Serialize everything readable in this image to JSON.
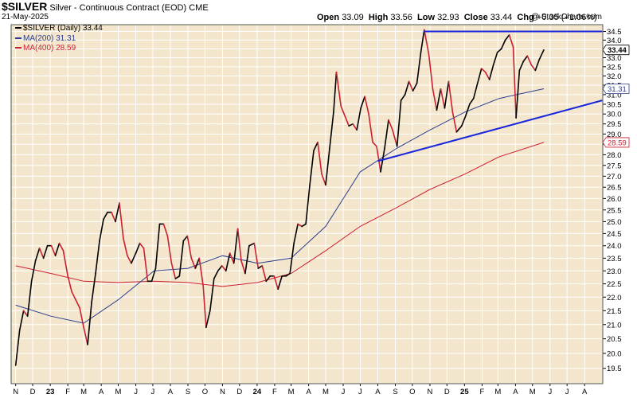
{
  "header": {
    "symbol": "$SILVER",
    "description": "Silver - Continuous Contract (EOD)",
    "exchange": "CME",
    "date": "21-May-2025",
    "open_label": "Open",
    "open": "33.09",
    "high_label": "High",
    "high": "33.56",
    "low_label": "Low",
    "low": "32.93",
    "close_label": "Close",
    "close": "33.44",
    "chg_label": "Chg",
    "chg": "+0.35 (+1.06%)",
    "watermark": "@ StockCharts.com"
  },
  "legend": {
    "price": "$SILVER (Daily) 33.44",
    "ma200": "MA(200) 31.31",
    "ma400": "MA(400) 28.59"
  },
  "colors": {
    "plot_bg": "#f4e6cc",
    "up": "#000000",
    "down": "#cc1f2f",
    "ma200": "#2a3d8f",
    "ma400": "#cc1f2f",
    "trendline": "#1a26d9",
    "grid": "#ffffff"
  },
  "chart_data": {
    "type": "line",
    "title": "$SILVER Silver - Continuous Contract (EOD) CME",
    "x_ticks": [
      "N",
      "D",
      "23",
      "F",
      "M",
      "A",
      "M",
      "J",
      "J",
      "A",
      "S",
      "O",
      "N",
      "D",
      "24",
      "F",
      "M",
      "A",
      "M",
      "J",
      "J",
      "A",
      "S",
      "O",
      "N",
      "D",
      "25",
      "F",
      "M",
      "A",
      "M",
      "J",
      "J",
      "A"
    ],
    "y_ticks": [
      19.5,
      20.0,
      20.5,
      21.0,
      21.5,
      22.0,
      22.5,
      23.0,
      23.5,
      24.0,
      24.5,
      25.0,
      25.5,
      26.0,
      26.5,
      27.0,
      27.5,
      28.0,
      28.5,
      29.0,
      29.5,
      30.0,
      30.5,
      31.0,
      31.5,
      32.0,
      32.5,
      33.0,
      33.5,
      34.0,
      34.5
    ],
    "ylim": [
      19.0,
      34.9
    ],
    "y_scale": "log",
    "grid": true,
    "legend_position": "top-left",
    "last_value_labels": [
      "33.44",
      "31.31",
      "28.59"
    ],
    "series": [
      {
        "name": "$SILVER (Daily) 33.44",
        "x": [
          "2022-11-01",
          "2022-11-08",
          "2022-11-15",
          "2022-11-22",
          "2022-11-29",
          "2022-12-06",
          "2022-12-13",
          "2022-12-20",
          "2022-12-27",
          "2023-01-03",
          "2023-01-10",
          "2023-01-17",
          "2023-01-24",
          "2023-02-01",
          "2023-02-08",
          "2023-02-15",
          "2023-02-22",
          "2023-03-01",
          "2023-03-08",
          "2023-03-15",
          "2023-03-22",
          "2023-03-29",
          "2023-04-05",
          "2023-04-12",
          "2023-04-19",
          "2023-04-26",
          "2023-05-03",
          "2023-05-10",
          "2023-05-17",
          "2023-05-24",
          "2023-06-01",
          "2023-06-08",
          "2023-06-15",
          "2023-06-22",
          "2023-06-29",
          "2023-07-06",
          "2023-07-13",
          "2023-07-20",
          "2023-07-27",
          "2023-08-03",
          "2023-08-10",
          "2023-08-17",
          "2023-08-24",
          "2023-08-31",
          "2023-09-07",
          "2023-09-14",
          "2023-09-21",
          "2023-09-28",
          "2023-10-03",
          "2023-10-10",
          "2023-10-17",
          "2023-10-24",
          "2023-10-31",
          "2023-11-07",
          "2023-11-14",
          "2023-11-21",
          "2023-11-28",
          "2023-12-04",
          "2023-12-11",
          "2023-12-18",
          "2023-12-27",
          "2024-01-03",
          "2024-01-10",
          "2024-01-17",
          "2024-01-24",
          "2024-01-31",
          "2024-02-07",
          "2024-02-14",
          "2024-02-21",
          "2024-02-28",
          "2024-03-06",
          "2024-03-13",
          "2024-03-20",
          "2024-03-27",
          "2024-04-03",
          "2024-04-10",
          "2024-04-17",
          "2024-04-24",
          "2024-05-01",
          "2024-05-08",
          "2024-05-15",
          "2024-05-20",
          "2024-05-28",
          "2024-06-04",
          "2024-06-11",
          "2024-06-18",
          "2024-06-25",
          "2024-07-02",
          "2024-07-09",
          "2024-07-16",
          "2024-07-23",
          "2024-07-30",
          "2024-08-06",
          "2024-08-13",
          "2024-08-20",
          "2024-08-27",
          "2024-09-04",
          "2024-09-11",
          "2024-09-18",
          "2024-09-25",
          "2024-10-02",
          "2024-10-09",
          "2024-10-16",
          "2024-10-22",
          "2024-10-30",
          "2024-11-06",
          "2024-11-13",
          "2024-11-20",
          "2024-11-27",
          "2024-12-04",
          "2024-12-11",
          "2024-12-18",
          "2024-12-27",
          "2025-01-03",
          "2025-01-10",
          "2025-01-17",
          "2025-01-24",
          "2025-01-31",
          "2025-02-07",
          "2025-02-14",
          "2025-02-21",
          "2025-02-28",
          "2025-03-07",
          "2025-03-14",
          "2025-03-21",
          "2025-03-28",
          "2025-04-02",
          "2025-04-08",
          "2025-04-15",
          "2025-04-22",
          "2025-04-29",
          "2025-05-06",
          "2025-05-13",
          "2025-05-21"
        ],
        "values": [
          19.6,
          20.8,
          21.5,
          21.3,
          22.6,
          23.4,
          23.9,
          23.5,
          24.0,
          24.0,
          23.6,
          24.1,
          23.8,
          22.8,
          22.2,
          21.9,
          21.6,
          20.9,
          20.3,
          21.8,
          22.9,
          24.2,
          25.1,
          25.4,
          25.4,
          25.0,
          25.8,
          24.3,
          23.6,
          23.3,
          23.7,
          24.1,
          23.9,
          22.6,
          22.6,
          23.1,
          24.9,
          24.9,
          24.4,
          23.3,
          22.7,
          22.8,
          24.2,
          24.4,
          23.5,
          23.1,
          23.5,
          22.4,
          20.9,
          21.5,
          22.7,
          23.0,
          23.2,
          23.0,
          23.7,
          23.3,
          24.7,
          23.4,
          22.9,
          24.0,
          24.1,
          23.1,
          23.2,
          22.6,
          22.8,
          22.8,
          22.3,
          22.8,
          22.8,
          22.9,
          24.1,
          24.9,
          24.8,
          24.9,
          26.6,
          28.2,
          28.6,
          27.1,
          26.6,
          28.3,
          30.1,
          32.2,
          30.4,
          29.9,
          29.4,
          29.5,
          29.2,
          30.3,
          30.9,
          30.0,
          28.6,
          28.4,
          27.2,
          28.3,
          29.7,
          29.2,
          28.4,
          30.7,
          31.0,
          31.7,
          31.2,
          31.6,
          33.3,
          34.6,
          33.2,
          31.3,
          30.2,
          31.3,
          30.3,
          31.7,
          30.1,
          29.1,
          29.4,
          29.9,
          30.5,
          30.8,
          31.6,
          32.4,
          32.2,
          31.8,
          32.6,
          33.3,
          33.5,
          34.0,
          34.3,
          33.6,
          29.8,
          32.3,
          32.8,
          33.1,
          32.6,
          32.3,
          32.9,
          33.44
        ]
      },
      {
        "name": "MA(200) 31.31",
        "x": [
          "2022-11-01",
          "2023-01-02",
          "2023-03-01",
          "2023-05-01",
          "2023-07-03",
          "2023-09-01",
          "2023-11-01",
          "2024-01-02",
          "2024-03-01",
          "2024-05-01",
          "2024-07-01",
          "2024-09-03",
          "2024-11-01",
          "2025-01-02",
          "2025-03-03",
          "2025-05-21"
        ],
        "values": [
          21.7,
          21.3,
          21.05,
          21.9,
          23.0,
          23.1,
          23.6,
          23.3,
          23.5,
          24.8,
          27.2,
          28.3,
          29.2,
          30.1,
          30.8,
          31.31
        ]
      },
      {
        "name": "MA(400) 28.59",
        "x": [
          "2022-11-01",
          "2023-01-02",
          "2023-03-01",
          "2023-05-01",
          "2023-07-03",
          "2023-09-01",
          "2023-11-01",
          "2024-01-02",
          "2024-03-01",
          "2024-05-01",
          "2024-07-01",
          "2024-09-03",
          "2024-11-01",
          "2025-01-02",
          "2025-03-03",
          "2025-05-21"
        ],
        "values": [
          23.2,
          22.9,
          22.6,
          22.55,
          22.6,
          22.55,
          22.4,
          22.55,
          22.9,
          23.8,
          24.8,
          25.6,
          26.4,
          27.1,
          27.9,
          28.59
        ]
      }
    ],
    "annotations": [
      {
        "type": "horizontal_trendline",
        "x_start": "2024-10-21",
        "x_end": "2025-09-01",
        "y": 34.5
      },
      {
        "type": "rising_trendline",
        "x_start": "2024-08-01",
        "y_start": 27.7,
        "x_end": "2025-09-01",
        "y_end": 30.7
      }
    ]
  }
}
